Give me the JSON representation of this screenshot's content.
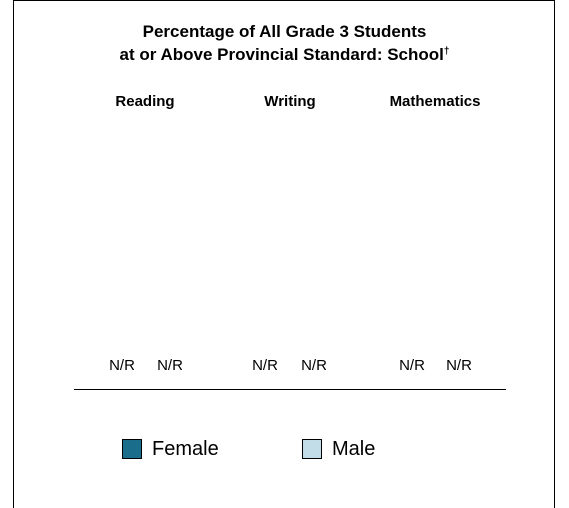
{
  "chart_data": {
    "type": "bar",
    "title_line1": "Percentage of All Grade 3 Students",
    "title_line2": "at or Above Provincial Standard: School",
    "title_mark": "†",
    "categories": [
      "Reading",
      "Writing",
      "Mathematics"
    ],
    "series": [
      {
        "name": "Female",
        "color": "#1a6e8c",
        "values": [
          "N/R",
          "N/R",
          "N/R"
        ]
      },
      {
        "name": "Male",
        "color": "#c3dde8",
        "values": [
          "N/R",
          "N/R",
          "N/R"
        ]
      }
    ],
    "legend_position": "bottom"
  }
}
